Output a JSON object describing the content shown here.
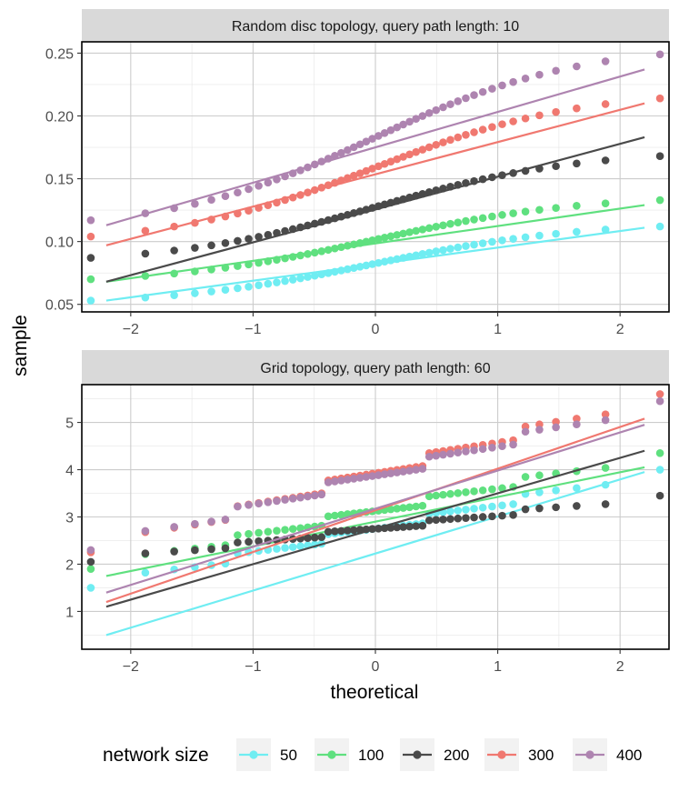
{
  "chart_data": {
    "type": "scatter",
    "description_type": "qq-plot",
    "xlabel": "theoretical",
    "ylabel": "sample",
    "x_ticks": [
      -2,
      -1,
      0,
      1,
      2
    ],
    "xlim": [
      -2.4,
      2.4
    ],
    "series_colors": {
      "50": "#6fedf2",
      "100": "#5fe07f",
      "200": "#4a4a4a",
      "300": "#f07870",
      "400": "#ae84b0"
    },
    "legend": {
      "title": "network size",
      "position": "bottom",
      "entries": [
        "50",
        "100",
        "200",
        "300",
        "400"
      ]
    },
    "panels": [
      {
        "title": "Random disc topology, query path length: 10",
        "ylim": [
          0.044,
          0.259
        ],
        "y_ticks": [
          0.05,
          0.1,
          0.15,
          0.2,
          0.25
        ],
        "y_tick_labels": [
          "0.05",
          "0.10",
          "0.15",
          "0.20",
          "0.25"
        ],
        "series": [
          {
            "name": "50",
            "min": 0.053,
            "max": 0.112,
            "line": [
              0.053,
              0.111
            ]
          },
          {
            "name": "100",
            "min": 0.07,
            "max": 0.133,
            "line": [
              0.068,
              0.129
            ]
          },
          {
            "name": "200",
            "min": 0.087,
            "max": 0.168,
            "line": [
              0.068,
              0.183
            ]
          },
          {
            "name": "300",
            "min": 0.104,
            "max": 0.214,
            "line": [
              0.097,
              0.21
            ]
          },
          {
            "name": "400",
            "min": 0.117,
            "max": 0.249,
            "line": [
              0.113,
              0.237
            ]
          }
        ]
      },
      {
        "title": "Grid topology, query path length: 60",
        "ylim": [
          0.2,
          5.8
        ],
        "y_ticks": [
          1,
          2,
          3,
          4,
          5
        ],
        "y_tick_labels": [
          "1",
          "2",
          "3",
          "4",
          "5"
        ],
        "series": [
          {
            "name": "50",
            "min": 1.5,
            "max": 4.0,
            "line": [
              0.5,
              3.95
            ]
          },
          {
            "name": "100",
            "min": 1.9,
            "max": 4.35,
            "line": [
              1.75,
              4.05
            ]
          },
          {
            "name": "200",
            "min": 2.05,
            "max": 3.45,
            "line": [
              1.1,
              4.4
            ]
          },
          {
            "name": "300",
            "min": 2.25,
            "max": 5.6,
            "line": [
              1.2,
              5.08
            ]
          },
          {
            "name": "400",
            "min": 2.3,
            "max": 5.45,
            "line": [
              1.4,
              4.95
            ]
          }
        ]
      }
    ]
  }
}
